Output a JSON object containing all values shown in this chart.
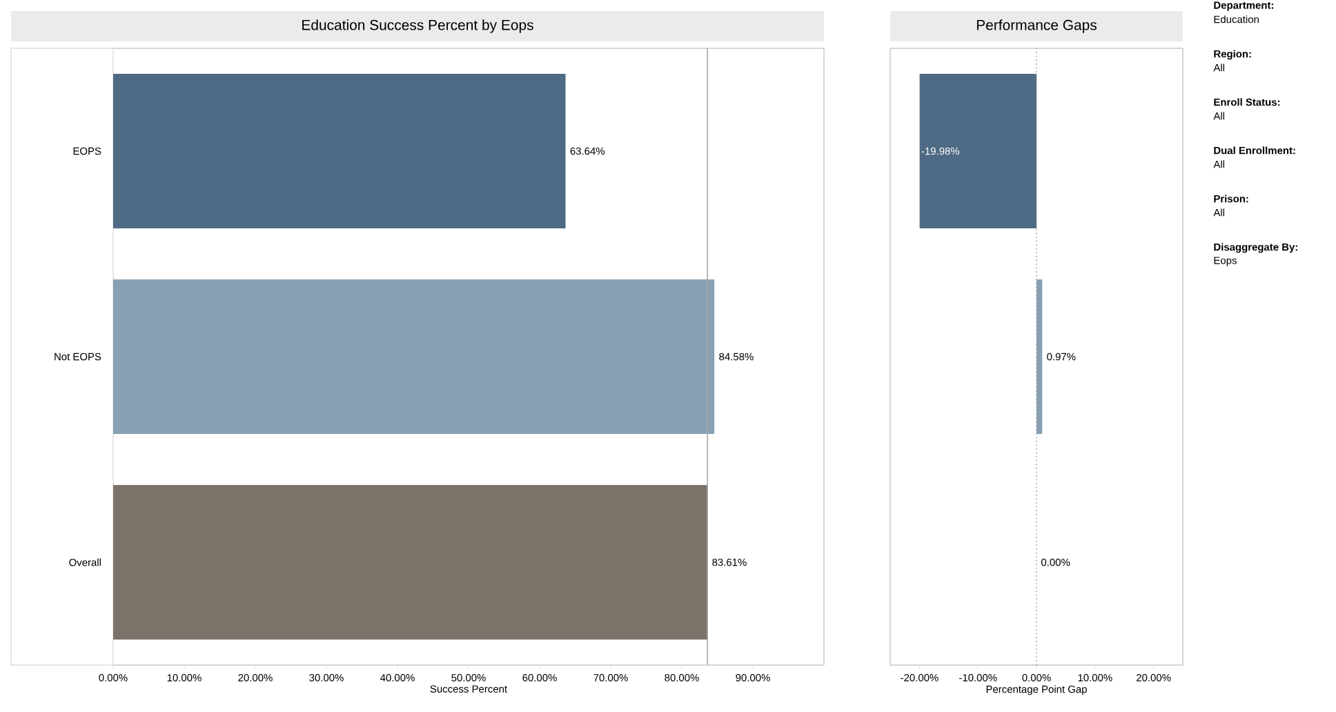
{
  "chart_data": [
    {
      "type": "bar",
      "orientation": "horizontal",
      "title": "Education Success Percent by Eops",
      "xlabel": "Success Percent",
      "categories": [
        "EOPS",
        "Not EOPS",
        "Overall"
      ],
      "values": [
        63.64,
        84.58,
        83.61
      ],
      "colors": [
        "#4e6a84",
        "#87a0b4",
        "#7b736a"
      ],
      "value_labels": [
        "63.64%",
        "84.58%",
        "83.61%"
      ],
      "xlim": [
        0,
        100
      ],
      "xticks": [
        {
          "value": 0,
          "label": "0.00%"
        },
        {
          "value": 10,
          "label": "10.00%"
        },
        {
          "value": 20,
          "label": "20.00%"
        },
        {
          "value": 30,
          "label": "30.00%"
        },
        {
          "value": 40,
          "label": "40.00%"
        },
        {
          "value": 50,
          "label": "50.00%"
        },
        {
          "value": 60,
          "label": "60.00%"
        },
        {
          "value": 70,
          "label": "70.00%"
        },
        {
          "value": 80,
          "label": "80.00%"
        },
        {
          "value": 90,
          "label": "90.00%"
        }
      ],
      "ref_lines": [
        {
          "axis": "x",
          "value": 83.61,
          "color": "#a8a8a8",
          "line_style": "solid"
        }
      ]
    },
    {
      "type": "bar",
      "orientation": "horizontal",
      "title": "Performance Gaps",
      "xlabel": "Percentage Point Gap",
      "categories": [
        null,
        null,
        null
      ],
      "values": [
        -19.98,
        0.97,
        0.0
      ],
      "colors": [
        "#4e6a84",
        "#87a0b4",
        "#7b5a4a"
      ],
      "value_labels": [
        "-19.98%",
        "0.97%",
        "0.00%"
      ],
      "xlim": [
        -25,
        25
      ],
      "tick_labels": "x",
      "xticks": [
        {
          "value": -20,
          "label": "-20.00%"
        },
        {
          "value": -10,
          "label": "-10.00%"
        },
        {
          "value": 0,
          "label": "0.00%"
        },
        {
          "value": 10,
          "label": "10.00%"
        },
        {
          "value": 20,
          "label": "20.00%"
        }
      ],
      "ref_lines": [
        {
          "axis": "x",
          "value": 0,
          "color": "#999999",
          "line_style": "dotted"
        }
      ]
    },
    {
      "type": "other",
      "annotations": [
        "Department:",
        "Education",
        "Region:",
        "All",
        "Enroll Status:",
        "All",
        "Dual Enrollment:",
        "All",
        "Prison:",
        "All",
        "Disaggregate By:",
        "Eops"
      ]
    }
  ]
}
